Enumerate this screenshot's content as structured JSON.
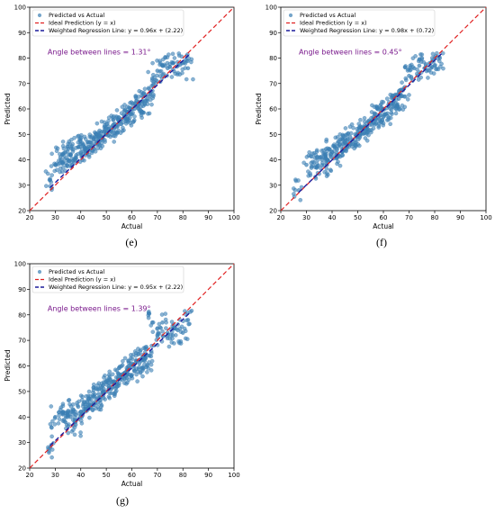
{
  "chart_data": [
    {
      "panel": "(e)",
      "type": "scatter",
      "xlabel": "Actual",
      "ylabel": "Predicted",
      "xlim": [
        20,
        100
      ],
      "ylim": [
        20,
        100
      ],
      "xticks": [
        20,
        30,
        40,
        50,
        60,
        70,
        80,
        90,
        100
      ],
      "yticks": [
        20,
        30,
        40,
        50,
        60,
        70,
        80,
        90,
        100
      ],
      "legend_position": "top-left",
      "legend": [
        "Predicted vs Actual",
        "Ideal Prediction (y = x)",
        "Weighted Regression Line: y = 0.96x + (2.22)"
      ],
      "annotation": "Angle between lines = 1.31°",
      "regression": {
        "slope": 0.96,
        "intercept": 2.22,
        "x_range": [
          28,
          83
        ]
      },
      "ideal_line": {
        "slope": 1,
        "intercept": 0
      },
      "series": [
        {
          "name": "Predicted vs Actual",
          "x": [
            28,
            30,
            32,
            33,
            34,
            35,
            36,
            37,
            38,
            39,
            40,
            41,
            42,
            43,
            44,
            45,
            46,
            47,
            48,
            49,
            50,
            51,
            52,
            53,
            54,
            55,
            56,
            57,
            58,
            59,
            60,
            61,
            62,
            63,
            64,
            65,
            66,
            67,
            68,
            70,
            72,
            74,
            76,
            78,
            80,
            82
          ],
          "y": [
            32,
            38,
            41,
            39,
            43,
            40,
            42,
            44,
            41,
            45,
            43,
            46,
            44,
            47,
            45,
            48,
            47,
            50,
            49,
            51,
            50,
            52,
            51,
            54,
            53,
            55,
            56,
            57,
            58,
            59,
            58,
            60,
            61,
            62,
            63,
            62,
            64,
            65,
            72,
            75,
            77,
            76,
            78,
            77,
            78,
            76
          ]
        }
      ]
    },
    {
      "panel": "(f)",
      "type": "scatter",
      "xlabel": "Actual",
      "ylabel": "Predicted",
      "xlim": [
        20,
        100
      ],
      "ylim": [
        20,
        100
      ],
      "xticks": [
        20,
        30,
        40,
        50,
        60,
        70,
        80,
        90,
        100
      ],
      "yticks": [
        20,
        30,
        40,
        50,
        60,
        70,
        80,
        90,
        100
      ],
      "legend_position": "top-left",
      "legend": [
        "Predicted vs Actual",
        "Ideal Prediction (y = x)",
        "Weighted Regression Line: y = 0.98x + (0.72)"
      ],
      "annotation": "Angle between lines = 0.45°",
      "regression": {
        "slope": 0.98,
        "intercept": 0.72,
        "x_range": [
          27,
          83
        ]
      },
      "ideal_line": {
        "slope": 1,
        "intercept": 0
      },
      "series": [
        {
          "name": "Predicted vs Actual",
          "x": [
            27,
            30,
            33,
            34,
            35,
            36,
            37,
            38,
            39,
            40,
            41,
            42,
            43,
            44,
            45,
            46,
            47,
            48,
            49,
            50,
            51,
            52,
            53,
            54,
            55,
            56,
            57,
            58,
            59,
            60,
            61,
            62,
            63,
            64,
            65,
            66,
            67,
            68,
            70,
            72,
            74,
            76,
            78,
            80,
            82
          ],
          "y": [
            28,
            38,
            39,
            37,
            41,
            40,
            42,
            38,
            44,
            43,
            45,
            42,
            46,
            44,
            47,
            46,
            49,
            48,
            50,
            51,
            50,
            52,
            53,
            52,
            55,
            56,
            58,
            57,
            59,
            60,
            58,
            61,
            62,
            63,
            62,
            64,
            65,
            68,
            73,
            76,
            77,
            76,
            78,
            77,
            80
          ]
        }
      ]
    },
    {
      "panel": "(g)",
      "type": "scatter",
      "xlabel": "Actual",
      "ylabel": "Predicted",
      "xlim": [
        20,
        100
      ],
      "ylim": [
        20,
        100
      ],
      "xticks": [
        20,
        30,
        40,
        50,
        60,
        70,
        80,
        90,
        100
      ],
      "yticks": [
        20,
        30,
        40,
        50,
        60,
        70,
        80,
        90,
        100
      ],
      "legend_position": "top-left",
      "legend": [
        "Predicted vs Actual",
        "Ideal Prediction (y = x)",
        "Weighted Regression Line: y = 0.95x + (2.22)"
      ],
      "annotation": "Angle between lines = 1.39°",
      "regression": {
        "slope": 0.95,
        "intercept": 2.22,
        "x_range": [
          28,
          83
        ]
      },
      "ideal_line": {
        "slope": 1,
        "intercept": 0
      },
      "series": [
        {
          "name": "Predicted vs Actual",
          "x": [
            28,
            30,
            33,
            34,
            35,
            36,
            37,
            38,
            39,
            40,
            41,
            42,
            43,
            44,
            45,
            46,
            47,
            48,
            49,
            50,
            51,
            52,
            53,
            54,
            55,
            56,
            57,
            58,
            59,
            60,
            61,
            62,
            63,
            64,
            65,
            66,
            67,
            68,
            70,
            72,
            74,
            76,
            78,
            80,
            82
          ],
          "y": [
            28,
            40,
            41,
            38,
            42,
            40,
            43,
            37,
            44,
            42,
            45,
            43,
            47,
            44,
            48,
            47,
            49,
            48,
            51,
            50,
            52,
            51,
            54,
            53,
            55,
            56,
            57,
            58,
            59,
            60,
            58,
            62,
            61,
            63,
            62,
            60,
            64,
            77,
            72,
            77,
            73,
            72,
            74,
            73,
            78
          ]
        }
      ]
    }
  ],
  "style": {
    "point_color": "#3a7fb4",
    "ideal_color": "#e02020",
    "regression_color": "#1c1c9c",
    "annotation_color": "#7a1a8c"
  }
}
